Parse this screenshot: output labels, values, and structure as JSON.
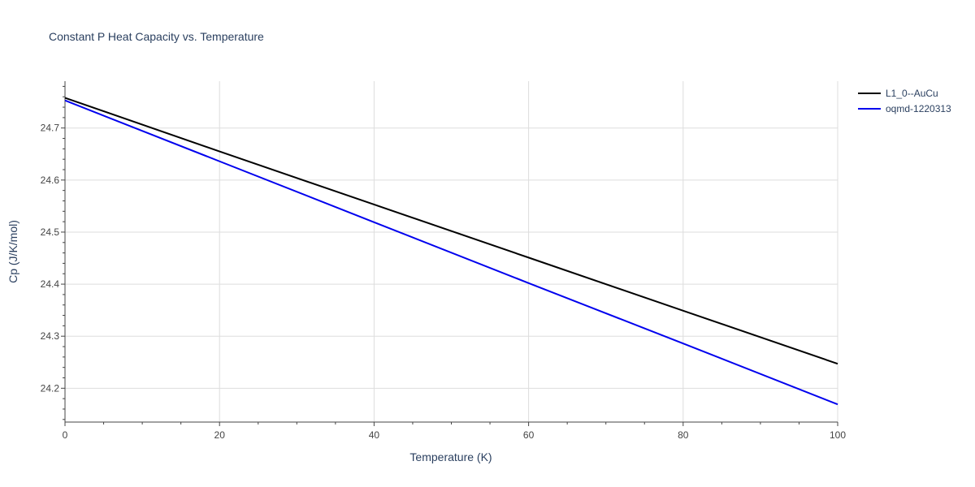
{
  "chart_data": {
    "type": "line",
    "title": "Constant P Heat Capacity vs. Temperature",
    "xlabel": "Temperature (K)",
    "ylabel": "Cp (J/K/mol)",
    "xlim": [
      0,
      100
    ],
    "ylim": [
      24.135,
      24.79
    ],
    "xticks": [
      0,
      20,
      40,
      60,
      80,
      100
    ],
    "yticks": [
      24.2,
      24.3,
      24.4,
      24.5,
      24.6,
      24.7
    ],
    "grid": true,
    "legend_position": "top-right",
    "series": [
      {
        "name": "L1_0--AuCu",
        "color": "#000000",
        "x": [
          0,
          20,
          40,
          60,
          80,
          100
        ],
        "y": [
          24.758,
          24.655,
          24.553,
          24.451,
          24.349,
          24.247
        ]
      },
      {
        "name": "oqmd-1220313",
        "color": "#0000ee",
        "x": [
          0,
          20,
          40,
          60,
          80,
          100
        ],
        "y": [
          24.753,
          24.636,
          24.519,
          24.402,
          24.286,
          24.169
        ]
      }
    ]
  }
}
